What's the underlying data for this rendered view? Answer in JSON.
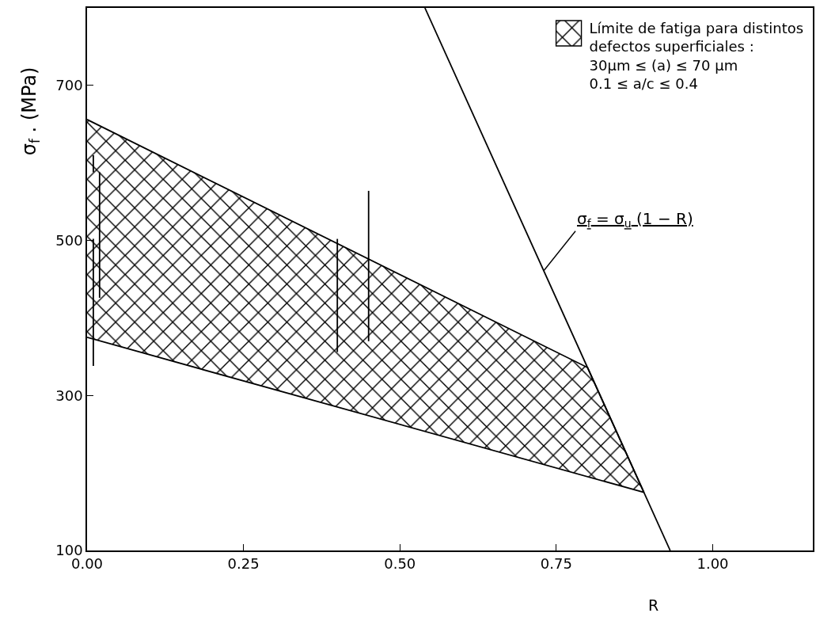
{
  "chart_data": {
    "type": "line",
    "xlabel": "R",
    "ylabel": "σ$_{f}$ . (MPa)",
    "xlim": [
      0,
      1.16
    ],
    "xticks": [
      {
        "value": 0,
        "label": "0.00"
      },
      {
        "value": 0.25,
        "label": "0.25"
      },
      {
        "value": 0.5,
        "label": "0.50"
      },
      {
        "value": 0.75,
        "label": "0.75"
      },
      {
        "value": 1,
        "label": "1.00"
      }
    ],
    "ylim": [
      100,
      800
    ],
    "yticks": [
      100,
      300,
      500,
      700
    ],
    "grid": false,
    "legend": "top right",
    "marker": "none",
    "series": [
      {
        "type": "area",
        "name": "Límite de fatiga para distintos\ndefectos superficiales :\n30μm ≤ (a) ≤ 70 μm\n0.1 ≤ a/c ≤ 0.4",
        "color": "#000000",
        "x": [
          0,
          0.8,
          0.89,
          0
        ],
        "values": [
          656,
          336,
          175,
          375
        ]
      },
      {
        "color": "#000000",
        "x": [
          0.54,
          0.932
        ],
        "values": [
          800,
          100
        ]
      },
      {
        "color": "#000000",
        "x": [
          0.01,
          0.01
        ],
        "values": [
          338,
          502
        ]
      },
      {
        "color": "#000000",
        "x": [
          0.01,
          0.01
        ],
        "values": [
          588,
          610
        ]
      },
      {
        "color": "#000000",
        "x": [
          0.02,
          0.02
        ],
        "values": [
          426,
          588
        ]
      },
      {
        "color": "#000000",
        "x": [
          0.4,
          0.4
        ],
        "values": [
          356,
          502
        ]
      },
      {
        "color": "#000000",
        "x": [
          0.45,
          0.45
        ],
        "values": [
          370,
          564
        ]
      }
    ],
    "annotations": [
      {
        "text": "σ$_{f}$ = σ$_{u}$ (1 − R)",
        "x": 0.73,
        "y": 461
      }
    ]
  }
}
